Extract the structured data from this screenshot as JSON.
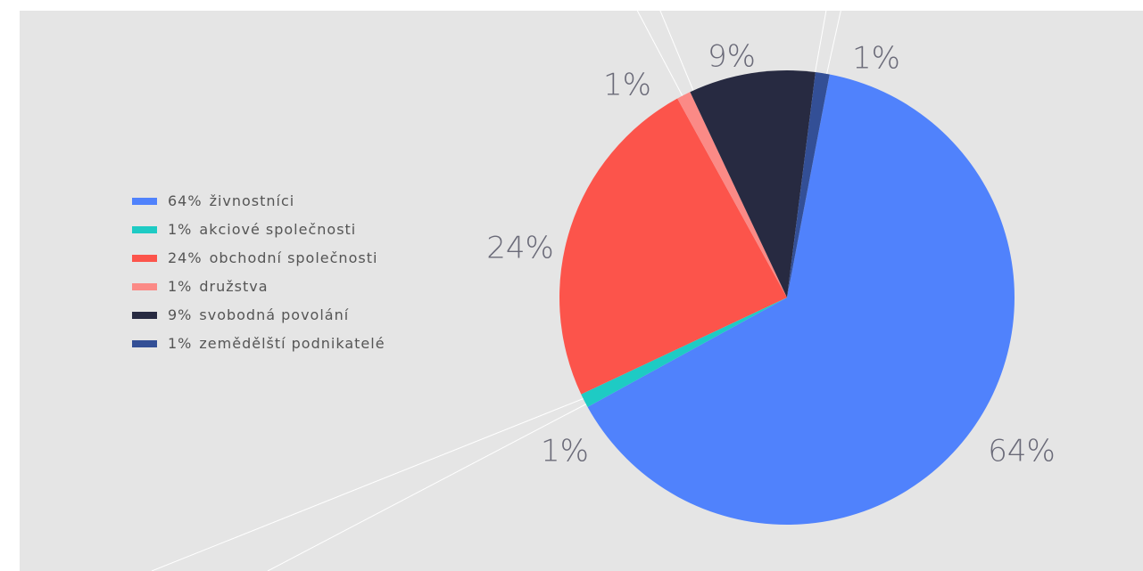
{
  "chart_data": {
    "type": "pie",
    "categories": [
      "živnostníci",
      "akciové společnosti",
      "obchodní společnosti",
      "družstva",
      "svobodná povolání",
      "zemědělští podnikatelé"
    ],
    "values": [
      64,
      1,
      24,
      1,
      9,
      1
    ],
    "value_labels": [
      "64%",
      "1%",
      "24%",
      "1%",
      "9%",
      "1%"
    ],
    "colors": [
      "#5082fc",
      "#1ecbc4",
      "#fc544b",
      "#fb8a86",
      "#272a41",
      "#334f96"
    ],
    "legend": "left"
  }
}
